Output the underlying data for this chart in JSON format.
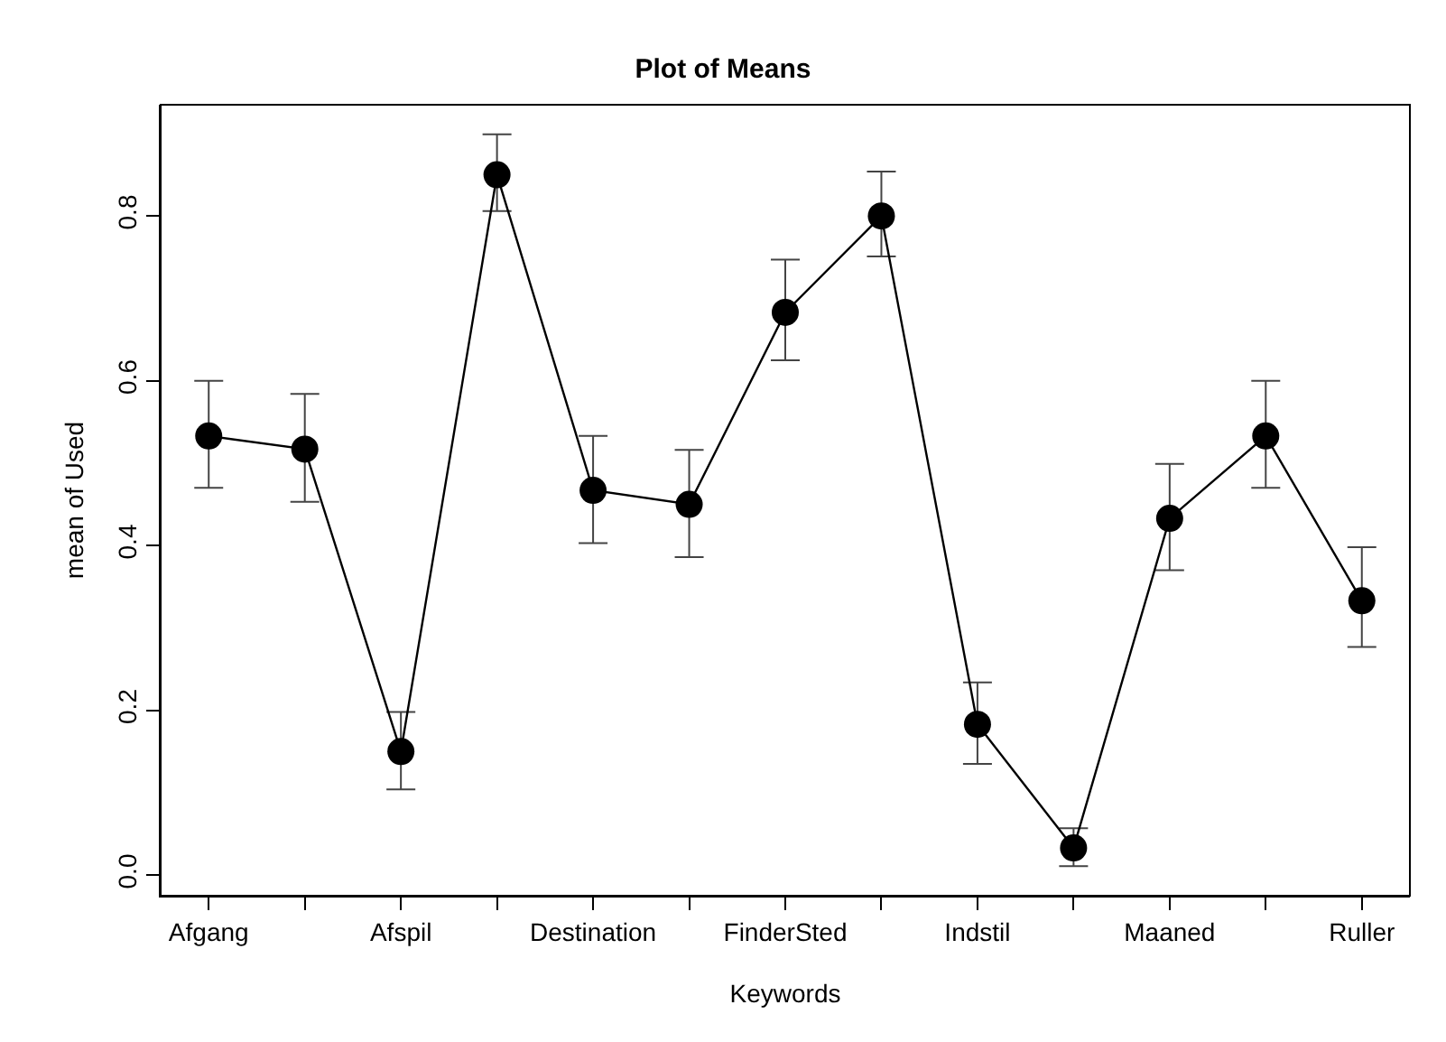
{
  "chart_data": {
    "type": "line",
    "title": "Plot of Means",
    "xlabel": "Keywords",
    "ylabel": "mean of Used",
    "categories": [
      "Afgang",
      null,
      "Afspil",
      null,
      "Destination",
      null,
      "FinderSted",
      null,
      "Indstil",
      null,
      "Maaned",
      null,
      "Ruller"
    ],
    "series": [
      {
        "color": "#000000",
        "values": [
          0.533,
          0.517,
          0.15,
          0.85,
          0.467,
          0.45,
          0.683,
          0.8,
          0.183,
          0.033,
          0.433,
          0.533,
          0.333
        ],
        "errors": [
          [
            0.47,
            0.6
          ],
          [
            0.453,
            0.584
          ],
          [
            0.104,
            0.198
          ],
          [
            0.806,
            0.899
          ],
          [
            0.403,
            0.533
          ],
          [
            0.386,
            0.516
          ],
          [
            0.625,
            0.747
          ],
          [
            0.751,
            0.854
          ],
          [
            0.135,
            0.234
          ],
          [
            0.011,
            0.057
          ],
          [
            0.37,
            0.499
          ],
          [
            0.47,
            0.6
          ],
          [
            0.277,
            0.398
          ]
        ]
      }
    ],
    "ylim": [
      -0.025,
      0.935
    ],
    "yticks": [
      {
        "value": 0,
        "label": "0.0"
      },
      0.2,
      0.4,
      0.6,
      0.8
    ],
    "marker": "circle",
    "line_style": "solid"
  }
}
